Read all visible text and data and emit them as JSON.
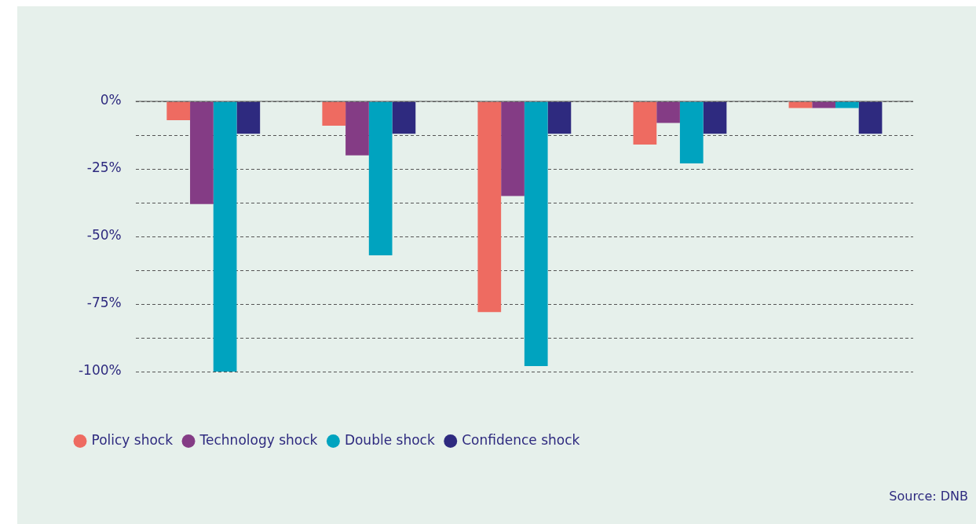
{
  "chart_data": {
    "type": "bar",
    "categories": [
      null,
      null,
      null,
      null,
      null
    ],
    "series": [
      {
        "name": "Policy shock",
        "color": "#ee6b61",
        "values": [
          -7,
          -9,
          -78,
          -16,
          -2.5
        ]
      },
      {
        "name": "Technology shock",
        "color": "#843c85",
        "values": [
          -38,
          -20,
          -35,
          -8,
          -2.5
        ]
      },
      {
        "name": "Double shock",
        "color": "#00a3bf",
        "values": [
          -100,
          -57,
          -98,
          -23,
          -2.5
        ]
      },
      {
        "name": "Confidence shock",
        "color": "#2e2a7f",
        "values": [
          -12,
          -12,
          -12,
          -12,
          -12
        ]
      }
    ],
    "ylim": [
      -100,
      0
    ],
    "yticks": [
      {
        "value": 0,
        "label": "0%"
      },
      {
        "value": -12.5,
        "label": null
      },
      {
        "value": -25,
        "label": "-25%"
      },
      {
        "value": -37.5,
        "label": null
      },
      {
        "value": -50,
        "label": "-50%"
      },
      {
        "value": -62.5,
        "label": null
      },
      {
        "value": -75,
        "label": "-75%"
      },
      {
        "value": -87.5,
        "label": null
      },
      {
        "value": -100,
        "label": "-100%"
      }
    ],
    "grid": "y",
    "tick_labels": "y",
    "legend": "bottom",
    "ref_lines": [
      {
        "axis": "y",
        "value": 0,
        "color": "#555555",
        "line_style": "solid"
      }
    ],
    "annotations": [
      "Source: DNB"
    ]
  }
}
